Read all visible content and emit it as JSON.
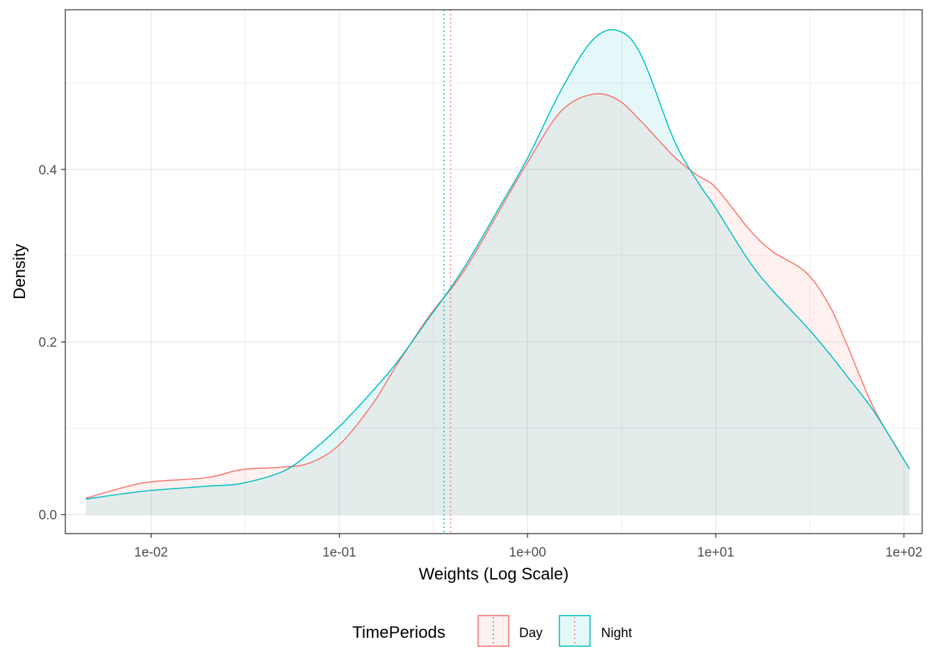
{
  "chart_data": {
    "type": "area",
    "title": "",
    "xlabel": "Weights (Log Scale)",
    "ylabel": "Density",
    "x_scale": "log10",
    "xlim": [
      0.0035,
      125
    ],
    "ylim": [
      -0.022,
      0.585
    ],
    "x_ticks": [
      0.01,
      0.1,
      1,
      10,
      100
    ],
    "x_tick_labels": [
      "1e-02",
      "1e-01",
      "1e+00",
      "1e+01",
      "1e+02"
    ],
    "y_ticks": [
      0,
      0.2,
      0.4
    ],
    "y_tick_labels": [
      "0.0",
      "0.2",
      "0.4"
    ],
    "grid": true,
    "legend": {
      "title": "TimePeriods",
      "position": "bottom",
      "labels": [
        "Day",
        "Night"
      ]
    },
    "series": [
      {
        "name": "Day",
        "color": "#F8766D",
        "fill": "#F8766D",
        "mean_line": 0.39,
        "x": [
          0.0045,
          0.007,
          0.01,
          0.02,
          0.03,
          0.05,
          0.07,
          0.1,
          0.15,
          0.2,
          0.3,
          0.4,
          0.5,
          0.7,
          1.0,
          1.5,
          2.2,
          3.0,
          4.0,
          6.0,
          8.0,
          10,
          15,
          20,
          30,
          40,
          50,
          70,
          107
        ],
        "values": [
          0.019,
          0.031,
          0.038,
          0.043,
          0.052,
          0.055,
          0.06,
          0.081,
          0.128,
          0.172,
          0.23,
          0.264,
          0.295,
          0.35,
          0.408,
          0.467,
          0.487,
          0.481,
          0.456,
          0.415,
          0.393,
          0.379,
          0.331,
          0.305,
          0.281,
          0.243,
          0.196,
          0.121,
          0.053
        ]
      },
      {
        "name": "Night",
        "color": "#00BFC4",
        "fill": "#00BFC4",
        "mean_line": 0.36,
        "x": [
          0.0045,
          0.007,
          0.01,
          0.02,
          0.03,
          0.05,
          0.07,
          0.1,
          0.15,
          0.2,
          0.3,
          0.4,
          0.5,
          0.7,
          1.0,
          1.5,
          2.2,
          3.0,
          4.0,
          6.0,
          8.0,
          10,
          15,
          20,
          30,
          40,
          50,
          70,
          107
        ],
        "values": [
          0.018,
          0.024,
          0.028,
          0.033,
          0.036,
          0.05,
          0.072,
          0.102,
          0.143,
          0.175,
          0.228,
          0.266,
          0.299,
          0.354,
          0.413,
          0.491,
          0.549,
          0.561,
          0.533,
          0.434,
          0.386,
          0.355,
          0.294,
          0.26,
          0.219,
          0.187,
          0.16,
          0.118,
          0.053
        ]
      }
    ]
  }
}
